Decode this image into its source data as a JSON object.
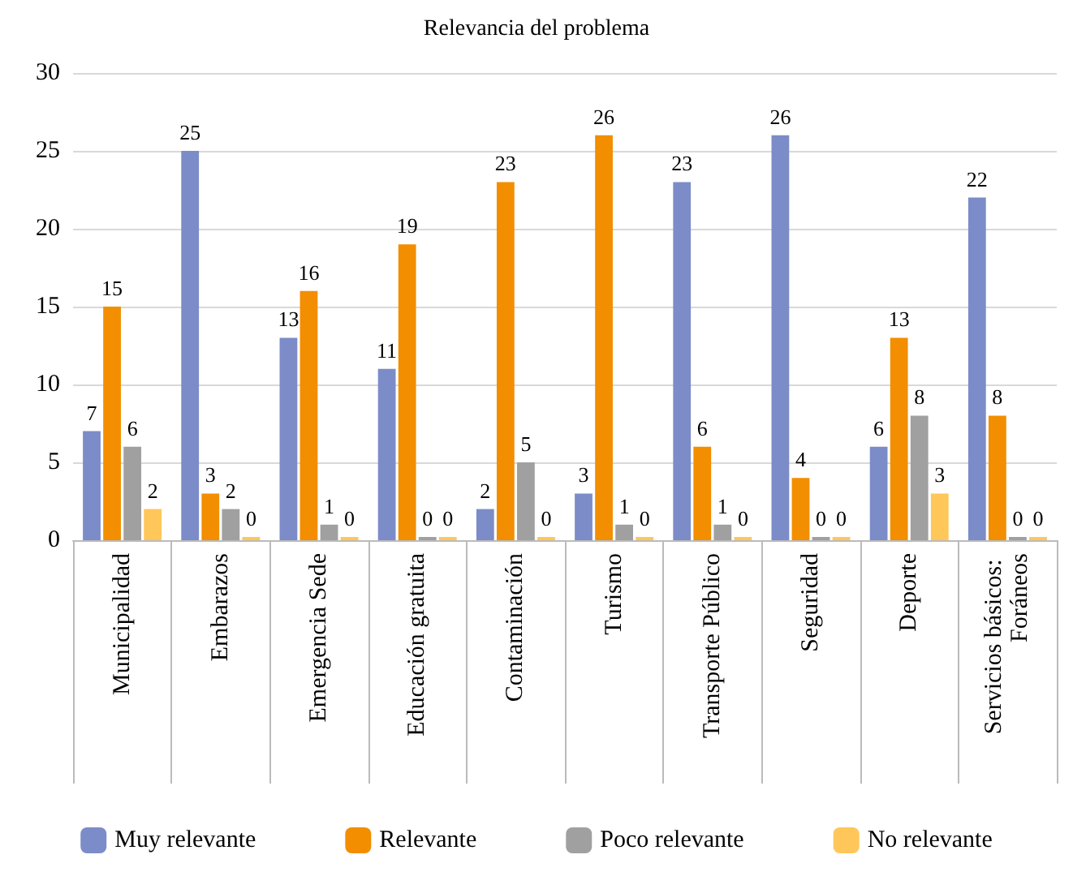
{
  "chart_data": {
    "type": "bar",
    "title": "Relevancia del problema",
    "categories": [
      "Municipalidad",
      "Embarazos",
      "Emergencia Sede",
      "Educación gratuita",
      "Contaminación",
      "Turismo",
      "Transporte Público",
      "Seguridad",
      "Deporte",
      "Servicios básicos: Foráneos"
    ],
    "series": [
      {
        "name": "Muy relevante",
        "color": "#7b8cc8",
        "values": [
          7,
          25,
          13,
          11,
          2,
          3,
          23,
          26,
          6,
          22
        ]
      },
      {
        "name": "Relevante",
        "color": "#f28e00",
        "values": [
          15,
          3,
          16,
          19,
          23,
          26,
          6,
          4,
          13,
          8
        ]
      },
      {
        "name": "Poco relevante",
        "color": "#a0a0a0",
        "values": [
          6,
          2,
          1,
          0,
          5,
          1,
          1,
          0,
          8,
          0
        ]
      },
      {
        "name": "No relevante",
        "color": "#ffc65a",
        "values": [
          2,
          0,
          0,
          0,
          0,
          0,
          0,
          0,
          3,
          0
        ]
      }
    ],
    "ylim": [
      0,
      30
    ],
    "yticks": [
      0,
      5,
      10,
      15,
      20,
      25,
      30
    ],
    "grid": "y",
    "legend": "bottom",
    "data_labels": true
  }
}
